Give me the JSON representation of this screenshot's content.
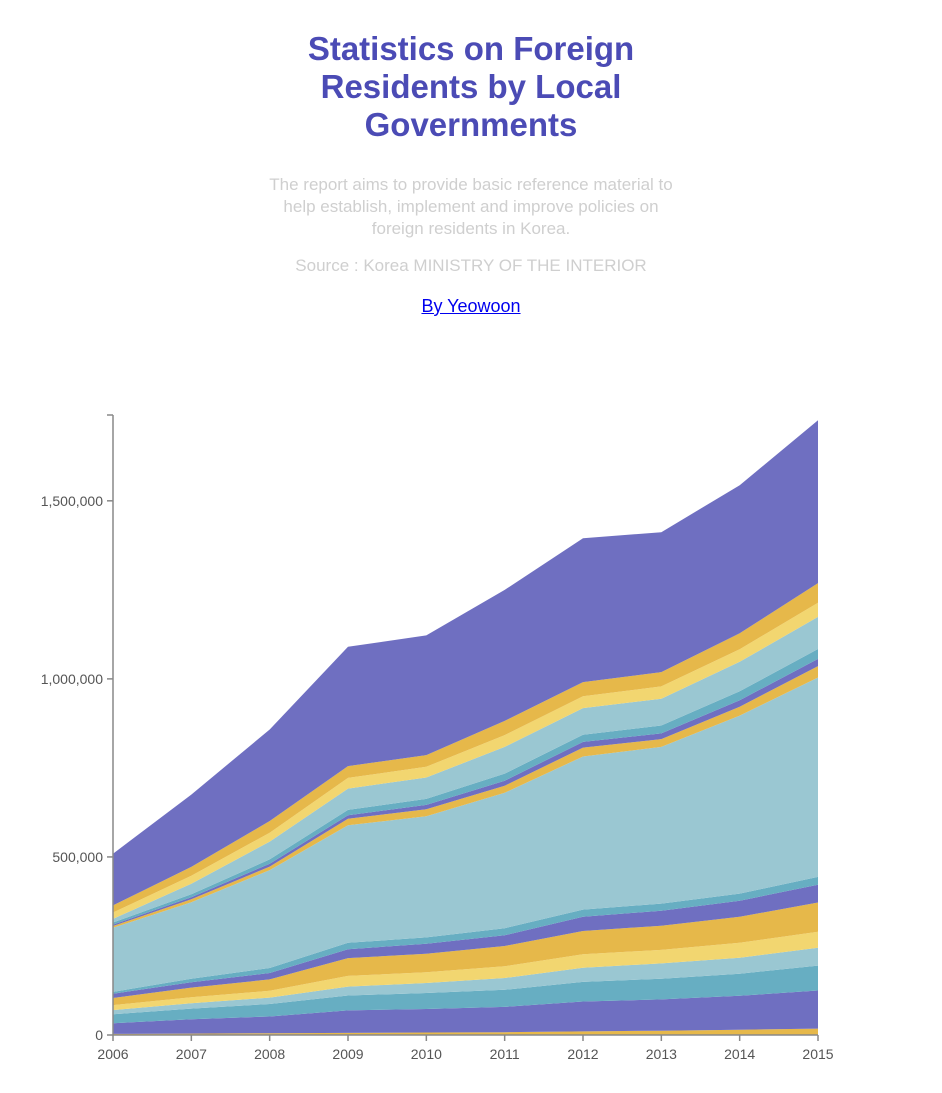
{
  "header": {
    "title": "Statistics on Foreign Residents by Local Governments",
    "subtitle": "The report aims to provide basic reference material to help establish, implement and improve policies on foreign residents in Korea.",
    "source": "Source : Korea MINISTRY OF THE INTERIOR",
    "byline": "By Yeowoon"
  },
  "chart_data": {
    "type": "area",
    "stacked": true,
    "x": [
      "2006",
      "2007",
      "2008",
      "2009",
      "2010",
      "2011",
      "2012",
      "2013",
      "2014",
      "2015"
    ],
    "ylim": [
      0,
      1741000
    ],
    "yticks": [
      0,
      500000,
      1000000,
      1500000
    ],
    "ytick_labels": [
      "0",
      "500,000",
      "1,000,000",
      "1,500,000"
    ],
    "grid": false,
    "legend": "none",
    "series": [
      {
        "color": "#e6b84a",
        "values": [
          3000,
          4000,
          5000,
          6000,
          7000,
          8000,
          10000,
          12000,
          15000,
          18000
        ]
      },
      {
        "color": "#6f6fc1",
        "values": [
          30000,
          40000,
          47000,
          63000,
          66000,
          71000,
          84000,
          88000,
          95000,
          107000
        ]
      },
      {
        "color": "#67aec2",
        "values": [
          25000,
          30000,
          35000,
          42000,
          45000,
          48000,
          55000,
          58000,
          62000,
          70000
        ]
      },
      {
        "color": "#9ac7d2",
        "values": [
          12000,
          15000,
          18000,
          25000,
          28000,
          33000,
          40000,
          43000,
          45000,
          50000
        ]
      },
      {
        "color": "#f2d670",
        "values": [
          14000,
          17000,
          19000,
          30000,
          30000,
          33000,
          38000,
          38000,
          42000,
          45000
        ]
      },
      {
        "color": "#e6b84a",
        "values": [
          20000,
          27000,
          32000,
          50000,
          52000,
          57000,
          65000,
          68000,
          73000,
          82000
        ]
      },
      {
        "color": "#6f6fc1",
        "values": [
          12000,
          15000,
          18000,
          25000,
          28000,
          30000,
          40000,
          42000,
          45000,
          50000
        ]
      },
      {
        "color": "#67aec2",
        "values": [
          5000,
          10000,
          14000,
          18000,
          18000,
          20000,
          20000,
          20000,
          20000,
          22000
        ]
      },
      {
        "color": "#9ac7d2",
        "values": [
          180000,
          215000,
          275000,
          330000,
          340000,
          380000,
          430000,
          440000,
          500000,
          560000
        ]
      },
      {
        "color": "#e6b84a",
        "values": [
          5000,
          8000,
          10000,
          18000,
          20000,
          20000,
          25000,
          22000,
          25000,
          32000
        ]
      },
      {
        "color": "#6f6fc1",
        "values": [
          4000,
          6000,
          8000,
          10000,
          12000,
          14000,
          16000,
          16000,
          18000,
          20000
        ]
      },
      {
        "color": "#67aec2",
        "values": [
          6000,
          8000,
          12000,
          15000,
          17000,
          20000,
          20000,
          22000,
          25000,
          28000
        ]
      },
      {
        "color": "#9ac7d2",
        "values": [
          10000,
          30000,
          50000,
          60000,
          60000,
          75000,
          75000,
          75000,
          83000,
          90000
        ]
      },
      {
        "color": "#f2d670",
        "values": [
          18000,
          22000,
          25000,
          30000,
          30000,
          33000,
          33000,
          35000,
          35000,
          40000
        ]
      },
      {
        "color": "#e6b84a",
        "values": [
          20000,
          25000,
          33000,
          33000,
          33000,
          40000,
          40000,
          40000,
          45000,
          55000
        ]
      },
      {
        "color": "#6f6fc1",
        "values": [
          145000,
          203000,
          257000,
          335000,
          336000,
          368000,
          404000,
          393000,
          416000,
          457000
        ]
      }
    ]
  }
}
